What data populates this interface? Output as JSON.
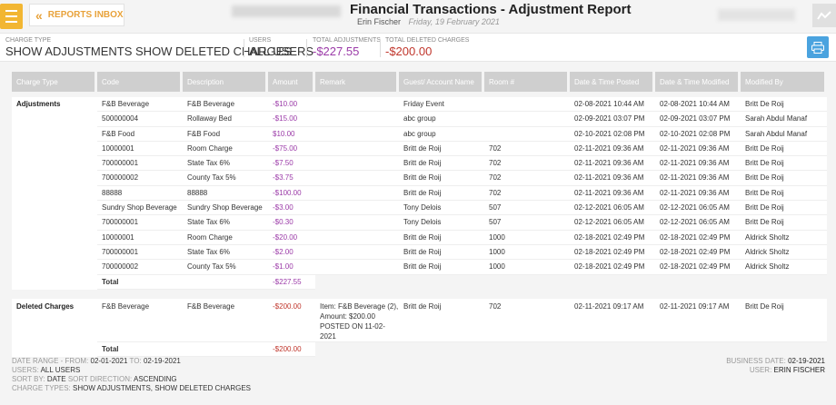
{
  "header": {
    "inbox_label": "REPORTS INBOX",
    "title": "Financial Transactions - Adjustment Report",
    "user": "Erin Fischer",
    "date": "Friday, 19 February 2021"
  },
  "summary": {
    "charge_type_label": "CHARGE TYPE",
    "charge_type_value": "SHOW ADJUSTMENTS SHOW DELETED CHARGES",
    "users_label": "USERS",
    "users_value": "ALL USERS",
    "total_adj_label": "TOTAL ADJUSTMENTS",
    "total_adj_value": "-$227.55",
    "total_del_label": "TOTAL DELETED CHARGES",
    "total_del_value": "-$200.00"
  },
  "columns": [
    "Charge Type",
    "Code",
    "Description",
    "Amount",
    "Remark",
    "Guest/ Account Name",
    "Room #",
    "Date & Time Posted",
    "Date & Time Modified",
    "Modified By"
  ],
  "adjustments": {
    "label": "Adjustments",
    "rows": [
      {
        "code": "F&B Beverage",
        "desc": "F&B Beverage",
        "amount": "-$10.00",
        "remark": "",
        "guest": "Friday Event",
        "room": "",
        "posted": "02-08-2021 10:44 AM",
        "modified": "02-08-2021 10:44 AM",
        "by": "Britt De Roij"
      },
      {
        "code": "500000004",
        "desc": "Rollaway Bed",
        "amount": "-$15.00",
        "remark": "",
        "guest": "abc group",
        "room": "",
        "posted": "02-09-2021 03:07 PM",
        "modified": "02-09-2021 03:07 PM",
        "by": "Sarah Abdul Manaf"
      },
      {
        "code": "F&B Food",
        "desc": "F&B Food",
        "amount": "$10.00",
        "remark": "",
        "guest": "abc group",
        "room": "",
        "posted": "02-10-2021 02:08 PM",
        "modified": "02-10-2021 02:08 PM",
        "by": "Sarah Abdul Manaf"
      },
      {
        "code": "10000001",
        "desc": "Room Charge",
        "amount": "-$75.00",
        "remark": "",
        "guest": "Britt de Roij",
        "room": "702",
        "posted": "02-11-2021 09:36 AM",
        "modified": "02-11-2021 09:36 AM",
        "by": "Britt De Roij"
      },
      {
        "code": "700000001",
        "desc": "State Tax 6%",
        "amount": "-$7.50",
        "remark": "",
        "guest": "Britt de Roij",
        "room": "702",
        "posted": "02-11-2021 09:36 AM",
        "modified": "02-11-2021 09:36 AM",
        "by": "Britt De Roij"
      },
      {
        "code": "700000002",
        "desc": "County Tax 5%",
        "amount": "-$3.75",
        "remark": "",
        "guest": "Britt de Roij",
        "room": "702",
        "posted": "02-11-2021 09:36 AM",
        "modified": "02-11-2021 09:36 AM",
        "by": "Britt De Roij"
      },
      {
        "code": "88888",
        "desc": "88888",
        "amount": "-$100.00",
        "remark": "",
        "guest": "Britt de Roij",
        "room": "702",
        "posted": "02-11-2021 09:36 AM",
        "modified": "02-11-2021 09:36 AM",
        "by": "Britt De Roij"
      },
      {
        "code": "Sundry Shop Beverage",
        "desc": "Sundry Shop Beverage",
        "amount": "-$3.00",
        "remark": "",
        "guest": "Tony Delois",
        "room": "507",
        "posted": "02-12-2021 06:05 AM",
        "modified": "02-12-2021 06:05 AM",
        "by": "Britt De Roij"
      },
      {
        "code": "700000001",
        "desc": "State Tax 6%",
        "amount": "-$0.30",
        "remark": "",
        "guest": "Tony Delois",
        "room": "507",
        "posted": "02-12-2021 06:05 AM",
        "modified": "02-12-2021 06:05 AM",
        "by": "Britt De Roij"
      },
      {
        "code": "10000001",
        "desc": "Room Charge",
        "amount": "-$20.00",
        "remark": "",
        "guest": "Britt de Roij",
        "room": "1000",
        "posted": "02-18-2021 02:49 PM",
        "modified": "02-18-2021 02:49 PM",
        "by": "Aldrick Sholtz"
      },
      {
        "code": "700000001",
        "desc": "State Tax 6%",
        "amount": "-$2.00",
        "remark": "",
        "guest": "Britt de Roij",
        "room": "1000",
        "posted": "02-18-2021 02:49 PM",
        "modified": "02-18-2021 02:49 PM",
        "by": "Aldrick Sholtz"
      },
      {
        "code": "700000002",
        "desc": "County Tax 5%",
        "amount": "-$1.00",
        "remark": "",
        "guest": "Britt de Roij",
        "room": "1000",
        "posted": "02-18-2021 02:49 PM",
        "modified": "02-18-2021 02:49 PM",
        "by": "Aldrick Sholtz"
      }
    ],
    "total_label": "Total",
    "total_value": "-$227.55"
  },
  "deleted": {
    "label": "Deleted Charges",
    "row": {
      "code": "F&B Beverage",
      "desc": "F&B Beverage",
      "amount": "-$200.00",
      "remark": "Item: F&B Beverage (2), Amount: $200.00 POSTED ON 11-02-2021",
      "guest": "Britt de Roij",
      "room": "702",
      "posted": "02-11-2021 09:17 AM",
      "modified": "02-11-2021 09:17 AM",
      "by": "Britt De Roij"
    },
    "total_label": "Total",
    "total_value": "-$200.00"
  },
  "footer": {
    "date_range_label": "DATE RANGE - FROM:",
    "date_from": "02-01-2021",
    "to_label": "TO:",
    "date_to": "02-19-2021",
    "users_label": "USERS:",
    "users_value": "ALL USERS",
    "sort_by_label": "SORT BY:",
    "sort_by_value": "DATE",
    "sort_dir_label": "SORT DIRECTION:",
    "sort_dir_value": "ASCENDING",
    "charge_types_label": "CHARGE TYPES:",
    "charge_types_value": "SHOW ADJUSTMENTS, SHOW DELETED CHARGES",
    "business_date_label": "BUSINESS DATE:",
    "business_date_value": "02-19-2021",
    "user_label": "USER:",
    "user_value": "ERIN FISCHER"
  },
  "colors": {
    "accent": "#f2b632",
    "positive": "#9b3aa8",
    "negative": "#c0362c",
    "print": "#4aa3df"
  },
  "icons": [
    "menu-icon",
    "double-chevron-left-icon",
    "trend-icon",
    "print-icon"
  ]
}
